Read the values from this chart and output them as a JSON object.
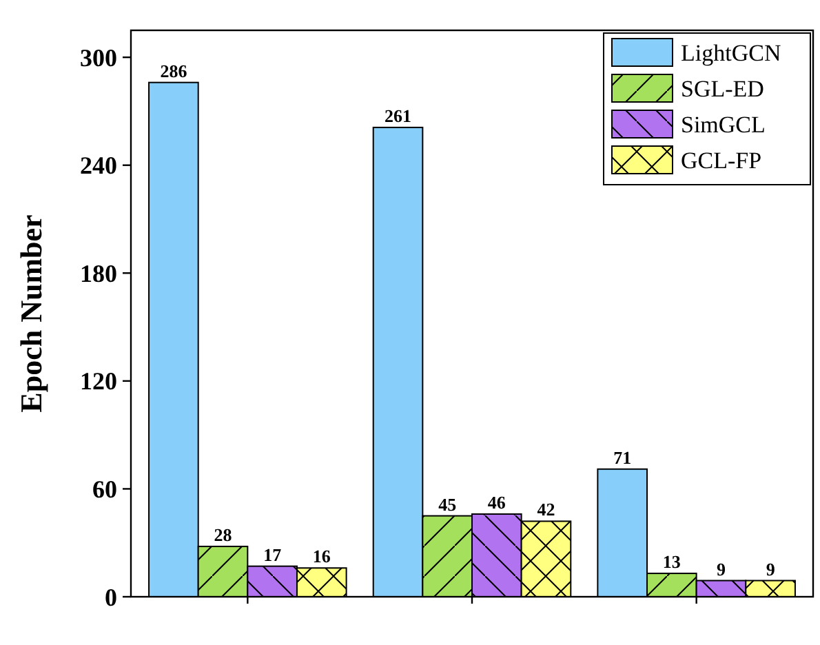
{
  "chart_data": {
    "type": "bar",
    "ylabel": "Epoch Number",
    "categories": [
      null,
      null,
      null
    ],
    "series": [
      {
        "name": "LightGCN",
        "color": "#87cefa",
        "values": [
          286,
          261,
          71
        ]
      },
      {
        "name": "SGL-ED",
        "color": "#a4e05c",
        "values": [
          28,
          45,
          13
        ]
      },
      {
        "name": "SimGCL",
        "color": "#b273f0",
        "values": [
          17,
          46,
          9
        ]
      },
      {
        "name": "GCL-FP",
        "color": "#ffff80",
        "values": [
          16,
          42,
          9
        ]
      }
    ],
    "ylim": [
      0,
      315
    ],
    "yticks": [
      0,
      60,
      120,
      180,
      240,
      300
    ],
    "data_labels": true,
    "legend": "top right",
    "grid": false
  }
}
